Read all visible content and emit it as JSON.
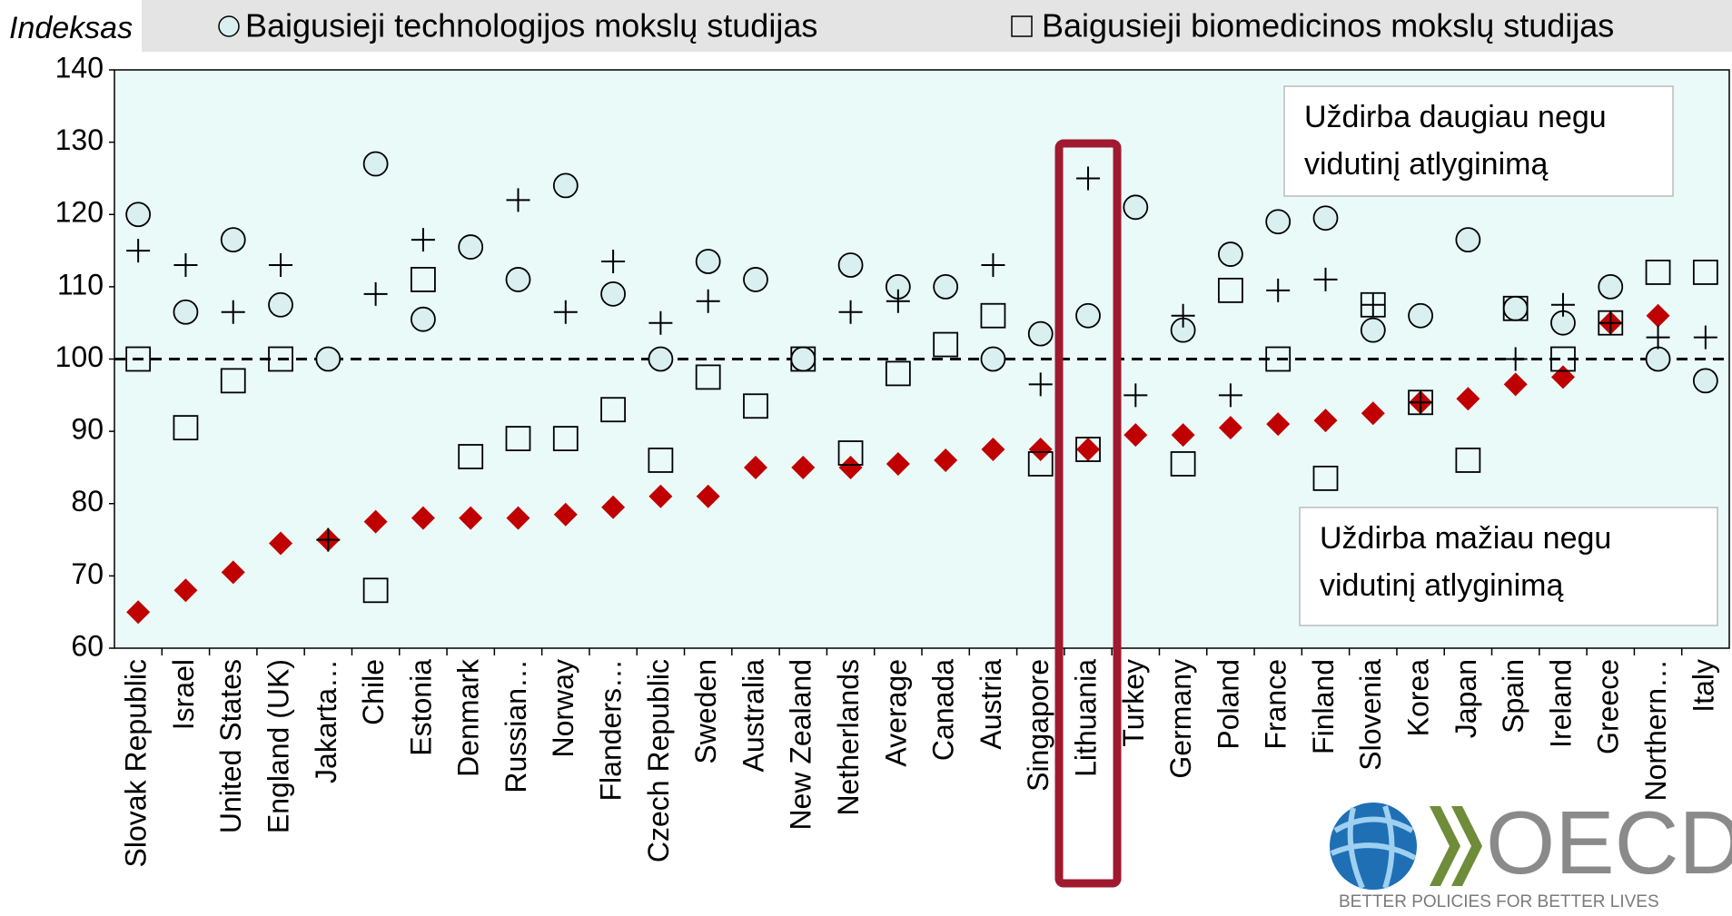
{
  "chart_data": {
    "type": "scatter",
    "y_axis_label": "Indeksas",
    "categories": [
      "Slovak Republic",
      "Israel",
      "United States",
      "England (UK)",
      "Jakarta…",
      "Chile",
      "Estonia",
      "Denmark",
      "Russian…",
      "Norway",
      "Flanders…",
      "Czech Republic",
      "Sweden",
      "Australia",
      "New Zealand",
      "Netherlands",
      "Average",
      "Canada",
      "Austria",
      "Singapore",
      "Lithuania",
      "Turkey",
      "Germany",
      "Poland",
      "France",
      "Finland",
      "Slovenia",
      "Korea",
      "Japan",
      "Spain",
      "Ireland",
      "Greece",
      "Northern…",
      "Italy"
    ],
    "series": [
      {
        "name": "Baigusieji technologijos mokslų studijas",
        "marker": "circle",
        "color": "#d9eff0",
        "values": [
          120,
          106.5,
          116.5,
          107.5,
          100,
          127,
          105.5,
          115.5,
          111,
          124,
          109,
          100,
          113.5,
          111,
          100,
          113,
          110,
          110,
          100,
          103.5,
          106,
          121,
          104,
          114.5,
          119,
          119.5,
          104,
          106,
          116.5,
          107,
          105,
          110,
          100,
          97
        ]
      },
      {
        "name": "Baigusieji biomedicinos mokslų studijas",
        "marker": "square",
        "color": "#000000",
        "values": [
          100,
          90.5,
          97,
          100,
          null,
          68,
          111,
          86.5,
          89,
          89,
          93,
          86,
          97.5,
          93.5,
          100,
          87,
          98,
          102,
          106,
          85.5,
          87.5,
          null,
          85.5,
          109.5,
          100,
          83.5,
          107.5,
          94,
          86,
          107,
          100,
          105,
          112,
          112
        ]
      },
      {
        "marker": "plus",
        "color": "#000000",
        "values": [
          115,
          113,
          106.5,
          113,
          75,
          109,
          116.5,
          null,
          122,
          106.5,
          113.5,
          105,
          108,
          null,
          null,
          106.5,
          108,
          null,
          113,
          96.5,
          125,
          95,
          106,
          95,
          109.5,
          111,
          107.5,
          94,
          null,
          100,
          107.5,
          105,
          103,
          103
        ]
      },
      {
        "marker": "diamond",
        "color": "#c00000",
        "values": [
          65,
          68,
          70.5,
          74.5,
          75,
          77.5,
          78,
          78,
          78,
          78.5,
          79.5,
          81,
          81,
          85,
          85,
          85,
          85.5,
          86,
          87.5,
          87.5,
          87.5,
          89.5,
          89.5,
          90.5,
          91,
          91.5,
          92.5,
          94,
          94.5,
          96.5,
          97.5,
          105,
          106,
          null
        ]
      }
    ],
    "reference_line": 100,
    "ylim": [
      60,
      140
    ],
    "yticks": [
      60,
      70,
      80,
      90,
      100,
      110,
      120,
      130,
      140
    ],
    "highlight": "Lithuania",
    "annotations": [
      [
        "Uždirba daugiau negu",
        "vidutinį atlyginimą"
      ],
      [
        "Uždirba mažiau negu",
        "vidutinį atlyginimą"
      ]
    ],
    "logo": {
      "name": "OECD",
      "tagline": "BETTER POLICIES FOR BETTER LIVES"
    }
  }
}
